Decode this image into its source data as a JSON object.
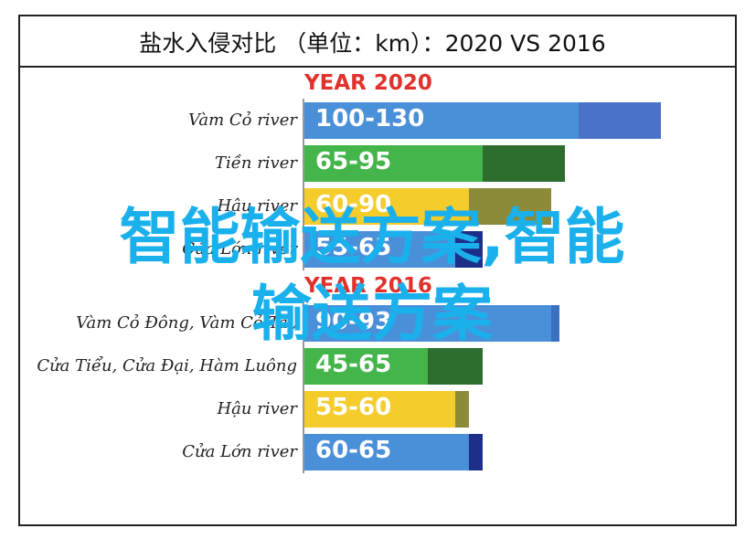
{
  "page": {
    "title": "盐水入侵对比 （单位：km）：2020 VS 2016"
  },
  "chart_data": {
    "type": "bar",
    "sections": [
      {
        "heading": "YEAR 2020",
        "rows": [
          {
            "river": "Vàm Cỏ river",
            "range": [
              100,
              130
            ],
            "label": "100-130",
            "color_light": "#4a90d9",
            "color_dark": "#4a72c8"
          },
          {
            "river": "Tiền river",
            "range": [
              65,
              95
            ],
            "label": "65-95",
            "color_light": "#44b54a",
            "color_dark": "#2d6e2f"
          },
          {
            "river": "Hậu river",
            "range": [
              60,
              90
            ],
            "label": "60-90",
            "color_light": "#f4cc2c",
            "color_dark": "#8b8b3a"
          },
          {
            "river": "Cửa Lớn river",
            "range": [
              55,
              65
            ],
            "label": "55-65",
            "color_light": "#4a90d9",
            "color_dark": "#1e2f8a"
          }
        ]
      },
      {
        "heading": "YEAR 2016",
        "rows": [
          {
            "river": "Vàm Cỏ Đông, Vàm Cỏ Tây",
            "range": [
              90,
              93
            ],
            "label": "90-93",
            "color_light": "#4a90d9",
            "color_dark": "#3a70c0"
          },
          {
            "river": "Cửa Tiểu, Cửa Đại, Hàm Luông",
            "range": [
              45,
              65
            ],
            "label": "45-65",
            "color_light": "#44b54a",
            "color_dark": "#2d6e2f"
          },
          {
            "river": "Hậu river",
            "range": [
              55,
              60
            ],
            "label": "55-60",
            "color_light": "#f4cc2c",
            "color_dark": "#8b8b3a"
          },
          {
            "river": "Cửa Lớn river",
            "range": [
              60,
              65
            ],
            "label": "60-65",
            "color_light": "#4a90d9",
            "color_dark": "#1e2f8a"
          }
        ]
      }
    ]
  },
  "watermark": {
    "line1": "智能输送方案,智能",
    "line2": "输送方案"
  }
}
